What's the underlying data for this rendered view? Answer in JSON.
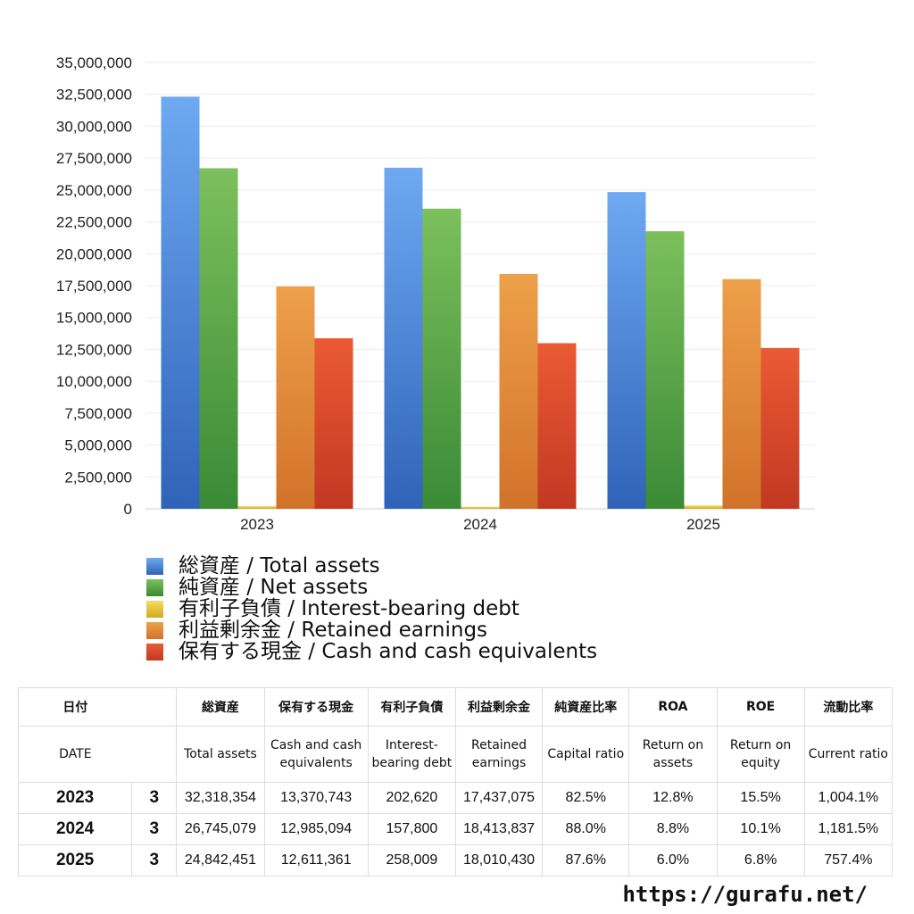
{
  "chart_data": {
    "type": "bar",
    "categories": [
      "2023",
      "2024",
      "2025"
    ],
    "ylim": [
      0,
      35000000
    ],
    "yticks": [
      "0",
      "2,500,000",
      "5,000,000",
      "7,500,000",
      "10,000,000",
      "12,500,000",
      "15,000,000",
      "17,500,000",
      "20,000,000",
      "22,500,000",
      "25,000,000",
      "27,500,000",
      "30,000,000",
      "32,500,000",
      "35,000,000"
    ],
    "grid": true,
    "legend_position": "bottom-left",
    "series": [
      {
        "name": "総資産 / Total assets",
        "values": [
          32318354,
          26745079,
          24842451
        ],
        "color": "#4a8ee6",
        "light": "#6ea9f2",
        "dark": "#2f63b8"
      },
      {
        "name": "純資産 / Net assets",
        "values": [
          26707000,
          23535000,
          21762000
        ],
        "color": "#5aaa4a",
        "light": "#7cc05c",
        "dark": "#3a8a36"
      },
      {
        "name": "有利子負債 / Interest-bearing debt",
        "values": [
          202620,
          157800,
          258009
        ],
        "color": "#e8c23a",
        "light": "#f3dc63",
        "dark": "#d4a91e"
      },
      {
        "name": "利益剰余金 / Retained earnings",
        "values": [
          17437075,
          18413837,
          18010430
        ],
        "color": "#e08a38",
        "light": "#eea04a",
        "dark": "#d2722a"
      },
      {
        "name": "保有する現金 /  Cash and cash equivalents",
        "values": [
          13370743,
          12985094,
          12611361
        ],
        "color": "#dd4a2a",
        "light": "#ea5a34",
        "dark": "#c23822"
      }
    ]
  },
  "table": {
    "header_jp": [
      "日付",
      "",
      "総資産",
      "保有する現金",
      "有利子負債",
      "利益剰余金",
      "純資産比率",
      "ROA",
      "ROE",
      "流動比率"
    ],
    "header_en": [
      "DATE",
      "",
      "Total assets",
      "Cash and cash equivalents",
      "Interest-bearing debt",
      "Retained earnings",
      "Capital ratio",
      "Return on assets",
      "Return on equity",
      "Current ratio"
    ],
    "rows": [
      [
        "2023",
        "3",
        "32,318,354",
        "13,370,743",
        "202,620",
        "17,437,075",
        "82.5%",
        "12.8%",
        "15.5%",
        "1,004.1%"
      ],
      [
        "2024",
        "3",
        "26,745,079",
        "12,985,094",
        "157,800",
        "18,413,837",
        "88.0%",
        "8.8%",
        "10.1%",
        "1,181.5%"
      ],
      [
        "2025",
        "3",
        "24,842,451",
        "12,611,361",
        "258,009",
        "18,010,430",
        "87.6%",
        "6.0%",
        "6.8%",
        "757.4%"
      ]
    ]
  },
  "site_url": "https://gurafu.net/"
}
